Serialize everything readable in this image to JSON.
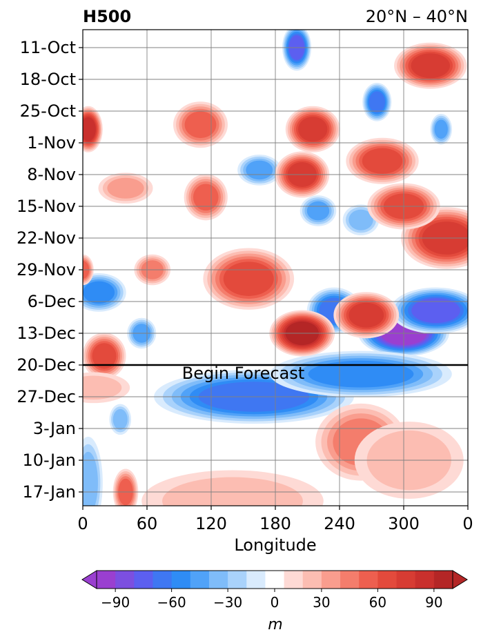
{
  "chart_data": {
    "type": "heatmap",
    "title_left": "H500",
    "title_right": "20°N – 40°N",
    "xlabel": "Longitude",
    "x_ticks": [
      "0",
      "60",
      "120",
      "180",
      "240",
      "300",
      "0"
    ],
    "y_ticks": [
      "11-Oct",
      "18-Oct",
      "25-Oct",
      "1-Nov",
      "8-Nov",
      "15-Nov",
      "22-Nov",
      "29-Nov",
      "6-Dec",
      "13-Dec",
      "20-Dec",
      "27-Dec",
      "3-Jan",
      "10-Jan",
      "17-Jan"
    ],
    "xlim": [
      0,
      360
    ],
    "grid": true,
    "forecast_line": "20-Dec",
    "annotation": "Begin Forecast",
    "colorbar": {
      "label": "m",
      "ticks": [
        "−90",
        "−60",
        "−30",
        "0",
        "30",
        "60",
        "90"
      ],
      "tick_values": [
        -90,
        -60,
        -30,
        0,
        30,
        60,
        90
      ],
      "levels": [
        -100,
        -90,
        -80,
        -70,
        -60,
        -50,
        -40,
        -30,
        -20,
        -10,
        10,
        20,
        30,
        40,
        50,
        60,
        70,
        80,
        90,
        100
      ],
      "colors": [
        "#9a3fd0",
        "#7c4fe0",
        "#5c5ff0",
        "#3f77f2",
        "#2f8cf5",
        "#50a2f8",
        "#7fbcf9",
        "#a9d2fb",
        "#d9ebfd",
        "#ffffff",
        "#fedad5",
        "#fcbdb2",
        "#f99d8e",
        "#f47d6c",
        "#ee5f4f",
        "#e34a3c",
        "#d73c33",
        "#c9302d",
        "#b42626"
      ],
      "extend": "both"
    },
    "anomalies": [
      {
        "lon": 195,
        "date": "26-Dec",
        "value": -95,
        "rx": 30,
        "ry": 2.5
      },
      {
        "lon": 160,
        "date": "27-Dec",
        "value": -65,
        "rx": 55,
        "ry": 3.5
      },
      {
        "lon": 300,
        "date": "13-Dec",
        "value": -92,
        "rx": 25,
        "ry": 3
      },
      {
        "lon": 330,
        "date": "8-Dec",
        "value": -75,
        "rx": 25,
        "ry": 3
      },
      {
        "lon": 260,
        "date": "22-Dec",
        "value": -55,
        "rx": 50,
        "ry": 3
      },
      {
        "lon": 200,
        "date": "11-Oct",
        "value": -70,
        "rx": 8,
        "ry": 3
      },
      {
        "lon": 275,
        "date": "23-Oct",
        "value": -60,
        "rx": 8,
        "ry": 2.5
      },
      {
        "lon": 335,
        "date": "29-Oct",
        "value": -40,
        "rx": 6,
        "ry": 2
      },
      {
        "lon": 165,
        "date": "7-Nov",
        "value": -45,
        "rx": 12,
        "ry": 2
      },
      {
        "lon": 220,
        "date": "16-Nov",
        "value": -45,
        "rx": 10,
        "ry": 2
      },
      {
        "lon": 260,
        "date": "18-Nov",
        "value": -35,
        "rx": 10,
        "ry": 2
      },
      {
        "lon": 15,
        "date": "4-Dec",
        "value": -55,
        "rx": 15,
        "ry": 2.5
      },
      {
        "lon": 55,
        "date": "13-Dec",
        "value": -45,
        "rx": 8,
        "ry": 2
      },
      {
        "lon": 235,
        "date": "8-Dec",
        "value": -60,
        "rx": 15,
        "ry": 3
      },
      {
        "lon": 35,
        "date": "1-Jan",
        "value": -30,
        "rx": 6,
        "ry": 2
      },
      {
        "lon": 5,
        "date": "15-Jan",
        "value": -30,
        "rx": 8,
        "ry": 6
      },
      {
        "lon": 5,
        "date": "29-Oct",
        "value": 85,
        "rx": 8,
        "ry": 3
      },
      {
        "lon": 110,
        "date": "28-Oct",
        "value": 55,
        "rx": 15,
        "ry": 3
      },
      {
        "lon": 215,
        "date": "29-Oct",
        "value": 75,
        "rx": 15,
        "ry": 3
      },
      {
        "lon": 205,
        "date": "8-Nov",
        "value": 70,
        "rx": 15,
        "ry": 3
      },
      {
        "lon": 280,
        "date": "5-Nov",
        "value": 60,
        "rx": 20,
        "ry": 3
      },
      {
        "lon": 325,
        "date": "15-Oct",
        "value": 75,
        "rx": 20,
        "ry": 3
      },
      {
        "lon": 340,
        "date": "22-Nov",
        "value": 75,
        "rx": 25,
        "ry": 4
      },
      {
        "lon": 300,
        "date": "15-Nov",
        "value": 65,
        "rx": 20,
        "ry": 3
      },
      {
        "lon": 155,
        "date": "1-Dec",
        "value": 65,
        "rx": 25,
        "ry": 4
      },
      {
        "lon": 205,
        "date": "13-Dec",
        "value": 95,
        "rx": 18,
        "ry": 3
      },
      {
        "lon": 265,
        "date": "9-Dec",
        "value": 70,
        "rx": 18,
        "ry": 3
      },
      {
        "lon": 20,
        "date": "18-Dec",
        "value": 65,
        "rx": 12,
        "ry": 3
      },
      {
        "lon": 65,
        "date": "29-Nov",
        "value": 45,
        "rx": 10,
        "ry": 2
      },
      {
        "lon": 40,
        "date": "11-Nov",
        "value": 35,
        "rx": 15,
        "ry": 2
      },
      {
        "lon": 115,
        "date": "13-Nov",
        "value": 55,
        "rx": 12,
        "ry": 3
      },
      {
        "lon": 0,
        "date": "29-Nov",
        "value": 55,
        "rx": 6,
        "ry": 2
      },
      {
        "lon": 260,
        "date": "6-Jan",
        "value": 45,
        "rx": 25,
        "ry": 5
      },
      {
        "lon": 40,
        "date": "17-Jan",
        "value": 55,
        "rx": 7,
        "ry": 3
      },
      {
        "lon": 140,
        "date": "19-Jan",
        "value": 20,
        "rx": 50,
        "ry": 4
      },
      {
        "lon": 305,
        "date": "10-Jan",
        "value": 25,
        "rx": 30,
        "ry": 5
      },
      {
        "lon": 10,
        "date": "25-Dec",
        "value": 25,
        "rx": 20,
        "ry": 2
      }
    ]
  }
}
